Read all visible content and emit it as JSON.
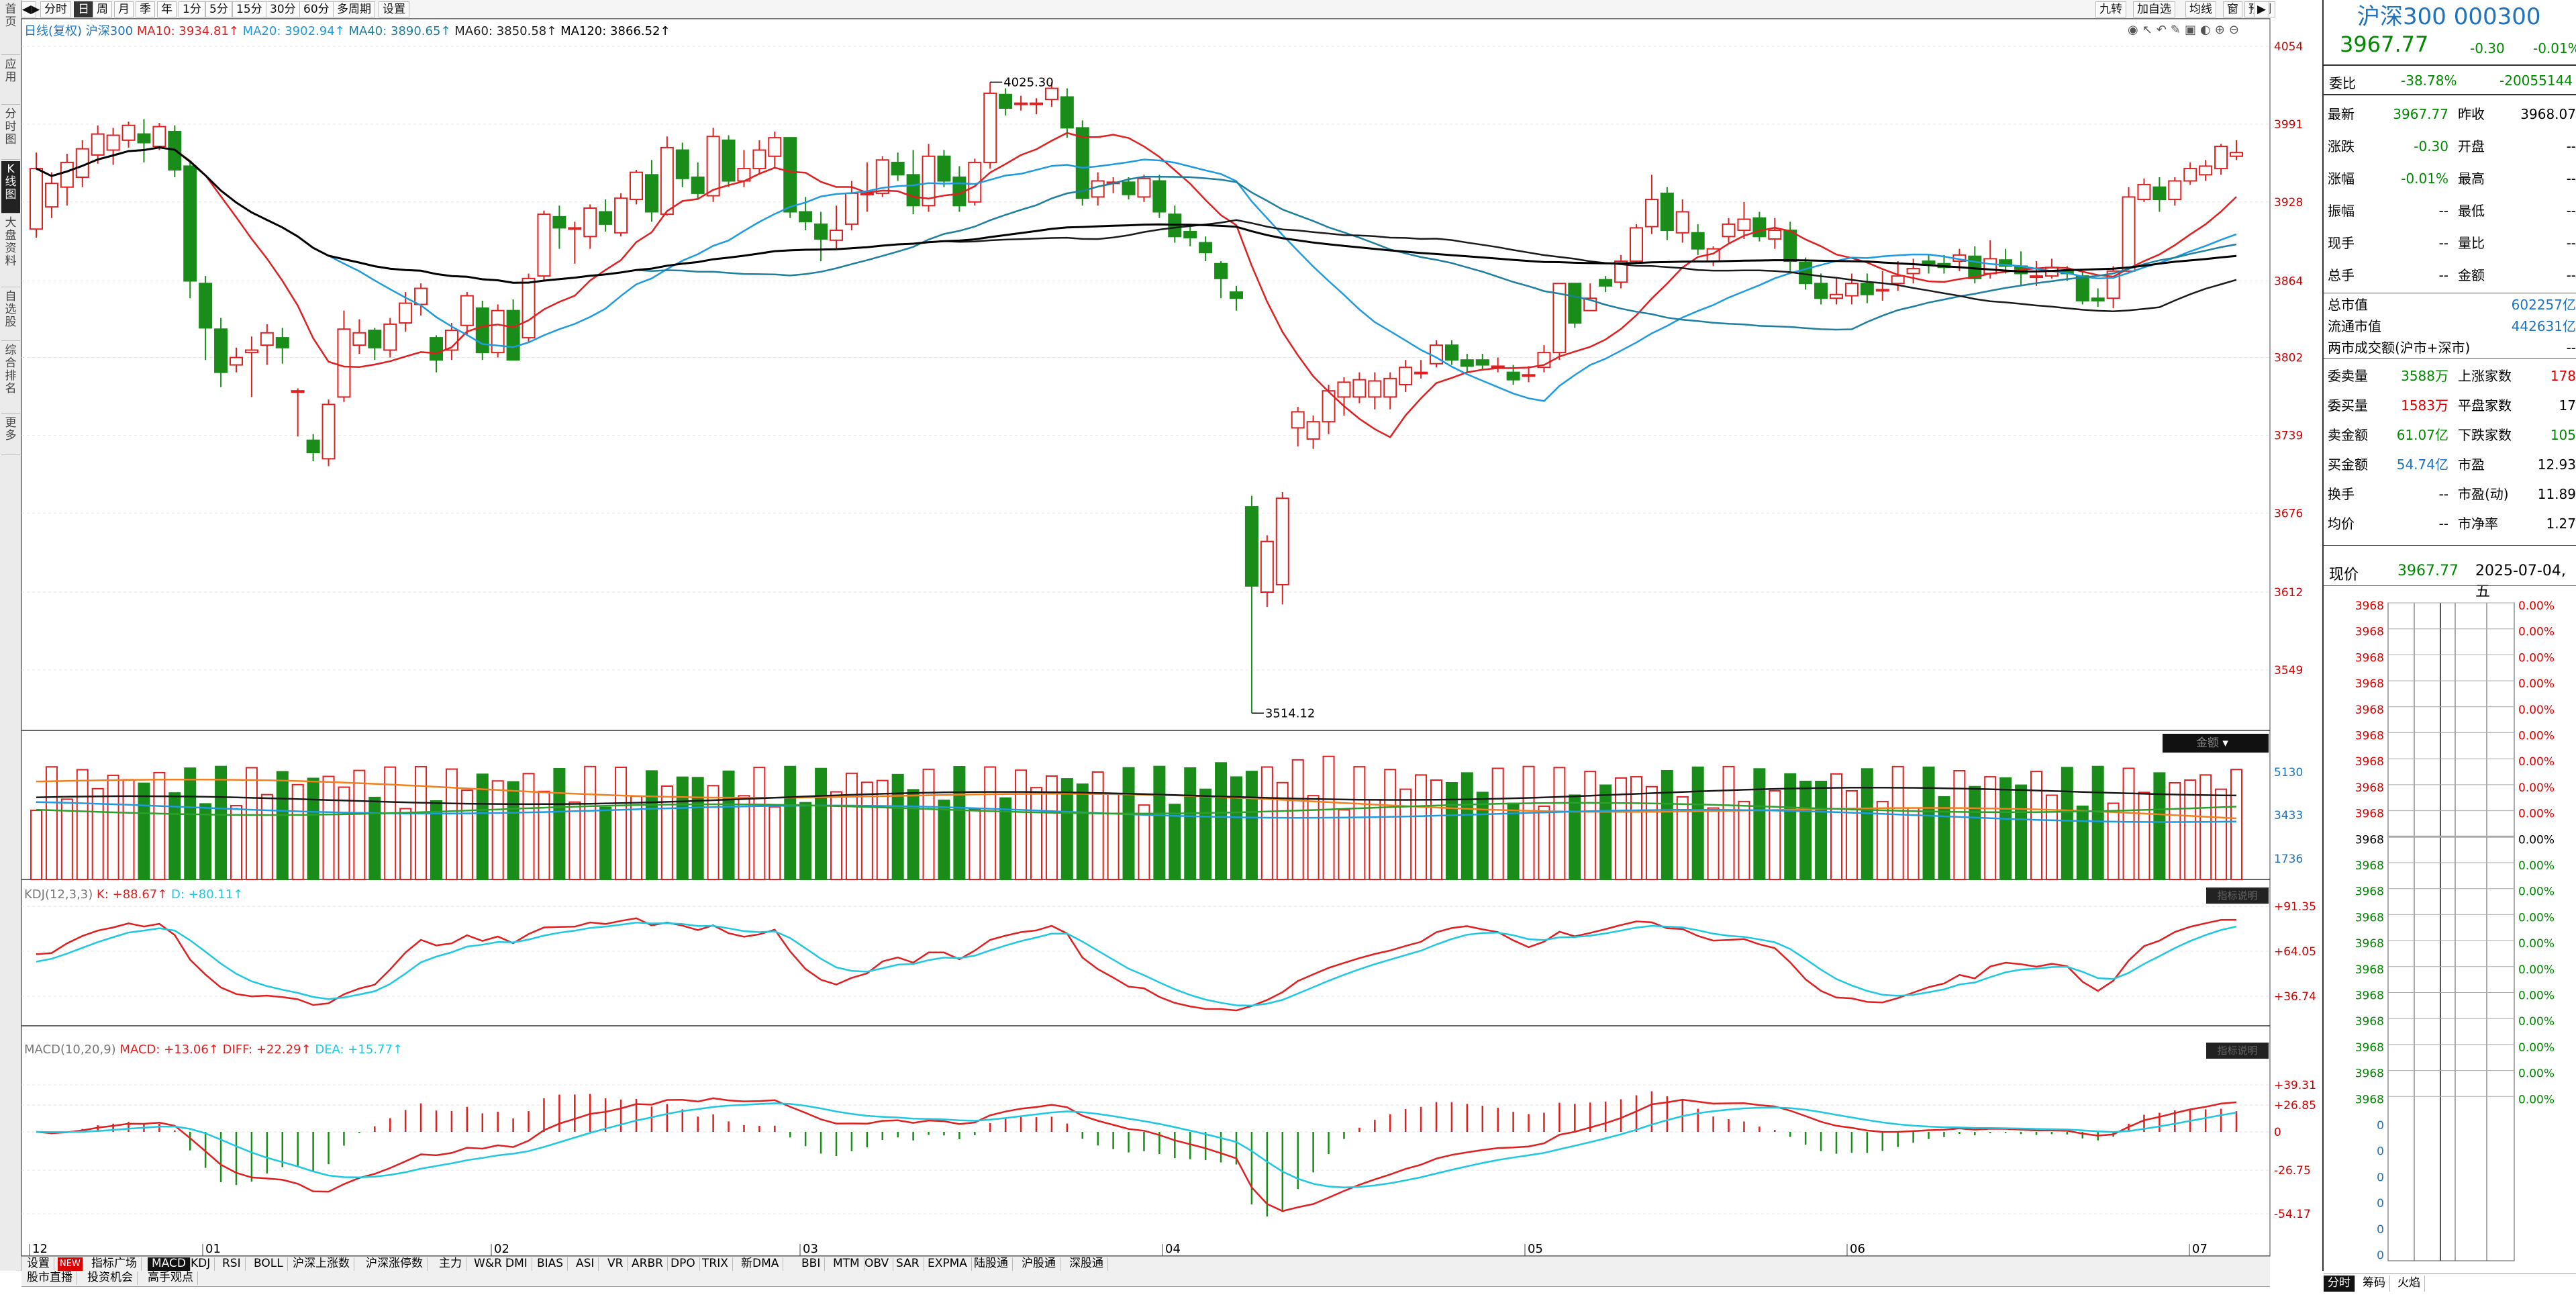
{
  "left_nav": [
    {
      "label": "首页"
    },
    {
      "label": "应用"
    },
    {
      "label": "分时图"
    },
    {
      "label": "K线图",
      "active": true
    },
    {
      "label": "大盘资料"
    },
    {
      "label": "自选股"
    },
    {
      "label": "综合排名"
    },
    {
      "label": "更多"
    }
  ],
  "toolbar": {
    "periods": [
      "分时",
      "日",
      "周",
      "月",
      "季",
      "年",
      "1分",
      "5分",
      "15分",
      "30分",
      "60分",
      "多周期",
      "设置"
    ],
    "active_period": "日",
    "right_buttons": [
      "九转",
      "加自选",
      "均线",
      "窗",
      "预测"
    ]
  },
  "ma_legend": {
    "prefix": "日线(复权)",
    "name": "沪深300",
    "ma10": "MA10: 3934.81↑",
    "ma20": "MA20: 3902.94↑",
    "ma40": "MA40: 3890.65↑",
    "ma60": "MA60: 3850.58↑",
    "ma120": "MA120: 3866.52↑"
  },
  "price_axis": [
    "4054",
    "3991",
    "3928",
    "3864",
    "3802",
    "3739",
    "3676",
    "3612",
    "3549"
  ],
  "high_marker": "4025.30",
  "low_marker": "3514.12",
  "volume_panel": {
    "label": "金额",
    "axis": [
      "5130",
      "3433",
      "1736"
    ]
  },
  "kdj_panel": {
    "legend": "KDJ(12,3,3)",
    "k": "K: +88.67↑",
    "d": "D: +80.11↑",
    "axis": [
      "+91.35",
      "+64.05",
      "+36.74"
    ],
    "tag": "指标说明"
  },
  "macd_panel": {
    "legend": "MACD(10,20,9)",
    "macd": "MACD: +13.06↑",
    "diff": "DIFF: +22.29↑",
    "dea": "DEA: +15.77↑",
    "axis": [
      "+39.31",
      "+26.85",
      "0",
      "-26.75",
      "-54.17"
    ],
    "tag": "指标说明"
  },
  "x_axis": [
    "12",
    "01",
    "02",
    "03",
    "04",
    "05",
    "06",
    "07"
  ],
  "indicator_tabs": [
    "设置",
    "指标广场",
    "MACD",
    "KDJ",
    "RSI",
    "BOLL",
    "沪深上涨数",
    "沪深涨停数",
    "主力",
    "W&R",
    "DMI",
    "BIAS",
    "ASI",
    "VR",
    "ARBR",
    "DPO",
    "TRIX",
    "新DMA",
    "BBI",
    "MTM",
    "OBV",
    "SAR",
    "EXPMA",
    "陆股通",
    "沪股通",
    "深股通"
  ],
  "active_tab": "MACD",
  "new_badge": "NEW",
  "bottom_tabs": [
    "股市直播",
    "投资机会",
    "高手观点"
  ],
  "side": {
    "title": "沪深300 000300",
    "price": "3967.77",
    "change": "-0.30",
    "change_pct": "-0.01%",
    "weibi_label": "委比",
    "weibi_pct": "-38.78%",
    "weibi_val": "-20055144",
    "rows": [
      {
        "l1": "最新",
        "v1": "3967.77",
        "l2": "昨收",
        "v2": "3968.07"
      },
      {
        "l1": "涨跌",
        "v1": "-0.30",
        "l2": "开盘",
        "v2": "--"
      },
      {
        "l1": "涨幅",
        "v1": "-0.01%",
        "l2": "最高",
        "v2": "--"
      },
      {
        "l1": "振幅",
        "v1": "--",
        "l2": "最低",
        "v2": "--"
      },
      {
        "l1": "现手",
        "v1": "--",
        "l2": "量比",
        "v2": "--"
      },
      {
        "l1": "总手",
        "v1": "--",
        "l2": "金额",
        "v2": "--"
      }
    ],
    "cap_rows": [
      {
        "l": "总市值",
        "v": "602257亿"
      },
      {
        "l": "流通市值",
        "v": "442631亿"
      },
      {
        "l": "两市成交额(沪市+深市)",
        "v": "--"
      }
    ],
    "order_rows": [
      {
        "l1": "委卖量",
        "v1": "3588万",
        "l2": "上涨家数",
        "v2": "178"
      },
      {
        "l1": "委买量",
        "v1": "1583万",
        "l2": "平盘家数",
        "v2": "17"
      },
      {
        "l1": "卖金额",
        "v1": "61.07亿",
        "l2": "下跌家数",
        "v2": "105"
      },
      {
        "l1": "买金额",
        "v1": "54.74亿",
        "l2": "市盈",
        "v2": "12.93"
      },
      {
        "l1": "换手",
        "v1": "--",
        "l2": "市盈(动)",
        "v2": "11.89"
      },
      {
        "l1": "均价",
        "v1": "--",
        "l2": "市净率",
        "v2": "1.27"
      }
    ],
    "now_label": "现价",
    "now_price": "3967.77",
    "now_date": "2025-07-04,五",
    "ladder_price": "3968",
    "ladder_pct": "0.00%",
    "ladder_zero": "0",
    "bottom_tabs": [
      "分时",
      "筹码",
      "火焰"
    ]
  },
  "chart_data": {
    "type": "candlestick",
    "price_range": [
      3500,
      4060
    ],
    "bars": [
      [
        3906,
        3955,
        3899,
        3968
      ],
      [
        3924,
        3943,
        3915,
        3952
      ],
      [
        3940,
        3960,
        3925,
        3967
      ],
      [
        3948,
        3971,
        3940,
        3978
      ],
      [
        3966,
        3983,
        3959,
        3990
      ],
      [
        3970,
        3982,
        3958,
        3988
      ],
      [
        3978,
        3990,
        3972,
        3993
      ],
      [
        3983,
        3976,
        3960,
        3995
      ],
      [
        3973,
        3989,
        3970,
        3992
      ],
      [
        3985,
        3954,
        3948,
        3990
      ],
      [
        3957,
        3864,
        3850,
        3960
      ],
      [
        3862,
        3826,
        3800,
        3868
      ],
      [
        3825,
        3790,
        3778,
        3834
      ],
      [
        3796,
        3802,
        3790,
        3810
      ],
      [
        3806,
        3808,
        3770,
        3819
      ],
      [
        3812,
        3822,
        3796,
        3829
      ],
      [
        3818,
        3810,
        3797,
        3826
      ],
      [
        3775,
        3775,
        3738,
        3777
      ],
      [
        3735,
        3725,
        3718,
        3740
      ],
      [
        3720,
        3764,
        3714,
        3768
      ],
      [
        3770,
        3825,
        3766,
        3840
      ],
      [
        3812,
        3822,
        3805,
        3833
      ],
      [
        3824,
        3810,
        3800,
        3826
      ],
      [
        3808,
        3829,
        3802,
        3834
      ],
      [
        3830,
        3846,
        3823,
        3855
      ],
      [
        3845,
        3858,
        3836,
        3862
      ],
      [
        3818,
        3800,
        3790,
        3820
      ],
      [
        3808,
        3824,
        3800,
        3830
      ],
      [
        3828,
        3852,
        3820,
        3855
      ],
      [
        3842,
        3806,
        3800,
        3848
      ],
      [
        3806,
        3840,
        3802,
        3845
      ],
      [
        3840,
        3800,
        3800,
        3849
      ],
      [
        3818,
        3866,
        3814,
        3870
      ],
      [
        3868,
        3918,
        3864,
        3921
      ],
      [
        3916,
        3907,
        3890,
        3925
      ],
      [
        3906,
        3907,
        3878,
        3912
      ],
      [
        3900,
        3923,
        3890,
        3926
      ],
      [
        3920,
        3910,
        3904,
        3930
      ],
      [
        3903,
        3931,
        3900,
        3935
      ],
      [
        3930,
        3952,
        3926,
        3954
      ],
      [
        3950,
        3920,
        3912,
        3962
      ],
      [
        3918,
        3972,
        3917,
        3981
      ],
      [
        3970,
        3947,
        3940,
        3976
      ],
      [
        3948,
        3935,
        3930,
        3960
      ],
      [
        3933,
        3981,
        3928,
        3988
      ],
      [
        3978,
        3945,
        3940,
        3982
      ],
      [
        3945,
        3955,
        3940,
        3970
      ],
      [
        3955,
        3970,
        3950,
        3978
      ],
      [
        3965,
        3980,
        3955,
        3985
      ],
      [
        3980,
        3920,
        3915,
        3980
      ],
      [
        3920,
        3912,
        3905,
        3932
      ],
      [
        3910,
        3898,
        3880,
        3920
      ],
      [
        3897,
        3905,
        3890,
        3925
      ],
      [
        3910,
        3935,
        3905,
        3945
      ],
      [
        3935,
        3935,
        3920,
        3960
      ],
      [
        3935,
        3962,
        3932,
        3965
      ],
      [
        3960,
        3950,
        3945,
        3968
      ],
      [
        3950,
        3925,
        3918,
        3970
      ],
      [
        3925,
        3965,
        3920,
        3975
      ],
      [
        3965,
        3945,
        3940,
        3970
      ],
      [
        3948,
        3925,
        3920,
        3957
      ],
      [
        3928,
        3960,
        3925,
        3963
      ],
      [
        3960,
        4016,
        3955,
        4025
      ],
      [
        4015,
        4004,
        3998,
        4020
      ],
      [
        4008,
        4008,
        4002,
        4014
      ],
      [
        4007,
        4008,
        3999,
        4012
      ],
      [
        4011,
        4020,
        4005,
        4025
      ],
      [
        4013,
        3988,
        3980,
        4020
      ],
      [
        3988,
        3931,
        3925,
        3994
      ],
      [
        3932,
        3945,
        3925,
        3952
      ],
      [
        3943,
        3944,
        3935,
        3948
      ],
      [
        3944,
        3934,
        3930,
        3948
      ],
      [
        3932,
        3947,
        3928,
        3950
      ],
      [
        3945,
        3920,
        3915,
        3950
      ],
      [
        3918,
        3900,
        3895,
        3925
      ],
      [
        3904,
        3899,
        3892,
        3908
      ],
      [
        3895,
        3887,
        3880,
        3900
      ],
      [
        3878,
        3866,
        3850,
        3880
      ],
      [
        3855,
        3850,
        3840,
        3860
      ],
      [
        3681,
        3617,
        3514,
        3690
      ],
      [
        3612,
        3653,
        3600,
        3658
      ],
      [
        3618,
        3688,
        3602,
        3693
      ],
      [
        3745,
        3758,
        3730,
        3762
      ],
      [
        3736,
        3750,
        3728,
        3755
      ],
      [
        3750,
        3775,
        3740,
        3780
      ],
      [
        3770,
        3782,
        3755,
        3786
      ],
      [
        3770,
        3784,
        3765,
        3790
      ],
      [
        3770,
        3783,
        3760,
        3790
      ],
      [
        3770,
        3785,
        3760,
        3790
      ],
      [
        3780,
        3794,
        3774,
        3800
      ],
      [
        3790,
        3790,
        3785,
        3800
      ],
      [
        3797,
        3812,
        3794,
        3816
      ],
      [
        3812,
        3800,
        3796,
        3816
      ],
      [
        3800,
        3795,
        3790,
        3805
      ],
      [
        3800,
        3796,
        3792,
        3805
      ],
      [
        3795,
        3795,
        3790,
        3802
      ],
      [
        3790,
        3784,
        3780,
        3796
      ],
      [
        3788,
        3788,
        3782,
        3795
      ],
      [
        3794,
        3806,
        3790,
        3812
      ],
      [
        3806,
        3862,
        3800,
        3862
      ],
      [
        3862,
        3830,
        3826,
        3862
      ],
      [
        3840,
        3850,
        3840,
        3862
      ],
      [
        3865,
        3860,
        3855,
        3868
      ],
      [
        3863,
        3880,
        3858,
        3885
      ],
      [
        3880,
        3907,
        3878,
        3910
      ],
      [
        3908,
        3930,
        3902,
        3950
      ],
      [
        3935,
        3905,
        3897,
        3940
      ],
      [
        3903,
        3920,
        3895,
        3930
      ],
      [
        3903,
        3890,
        3885,
        3910
      ],
      [
        3880,
        3890,
        3876,
        3892
      ],
      [
        3900,
        3910,
        3895,
        3915
      ],
      [
        3905,
        3914,
        3898,
        3928
      ],
      [
        3915,
        3900,
        3896,
        3920
      ],
      [
        3898,
        3905,
        3890,
        3915
      ],
      [
        3905,
        3880,
        3872,
        3912
      ],
      [
        3879,
        3862,
        3857,
        3883
      ],
      [
        3862,
        3850,
        3845,
        3870
      ],
      [
        3850,
        3853,
        3845,
        3866
      ],
      [
        3852,
        3862,
        3845,
        3870
      ],
      [
        3862,
        3853,
        3846,
        3870
      ],
      [
        3856,
        3857,
        3848,
        3872
      ],
      [
        3862,
        3868,
        3856,
        3880
      ],
      [
        3870,
        3874,
        3862,
        3882
      ],
      [
        3880,
        3878,
        3870,
        3886
      ],
      [
        3878,
        3875,
        3870,
        3885
      ],
      [
        3880,
        3885,
        3872,
        3890
      ],
      [
        3884,
        3866,
        3862,
        3892
      ],
      [
        3870,
        3882,
        3866,
        3897
      ],
      [
        3881,
        3876,
        3870,
        3890
      ],
      [
        3876,
        3870,
        3860,
        3888
      ],
      [
        3868,
        3868,
        3860,
        3880
      ],
      [
        3868,
        3875,
        3866,
        3882
      ],
      [
        3872,
        3870,
        3864,
        3876
      ],
      [
        3868,
        3848,
        3845,
        3872
      ],
      [
        3850,
        3848,
        3843,
        3858
      ],
      [
        3850,
        3872,
        3842,
        3876
      ],
      [
        3872,
        3932,
        3870,
        3940
      ],
      [
        3930,
        3942,
        3928,
        3947
      ],
      [
        3940,
        3930,
        3920,
        3948
      ],
      [
        3930,
        3945,
        3925,
        3948
      ],
      [
        3945,
        3955,
        3942,
        3960
      ],
      [
        3950,
        3957,
        3945,
        3962
      ],
      [
        3955,
        3973,
        3950,
        3975
      ],
      [
        3965,
        3968,
        3962,
        3978
      ]
    ],
    "mas": {
      "ma10": {
        "color": "#e02020"
      },
      "ma20": {
        "color": "#1e9be0"
      },
      "ma40": {
        "color": "#1e7fa0"
      },
      "ma60": {
        "color": "#1a1a1a"
      },
      "ma120": {
        "color": "#000000"
      }
    }
  }
}
